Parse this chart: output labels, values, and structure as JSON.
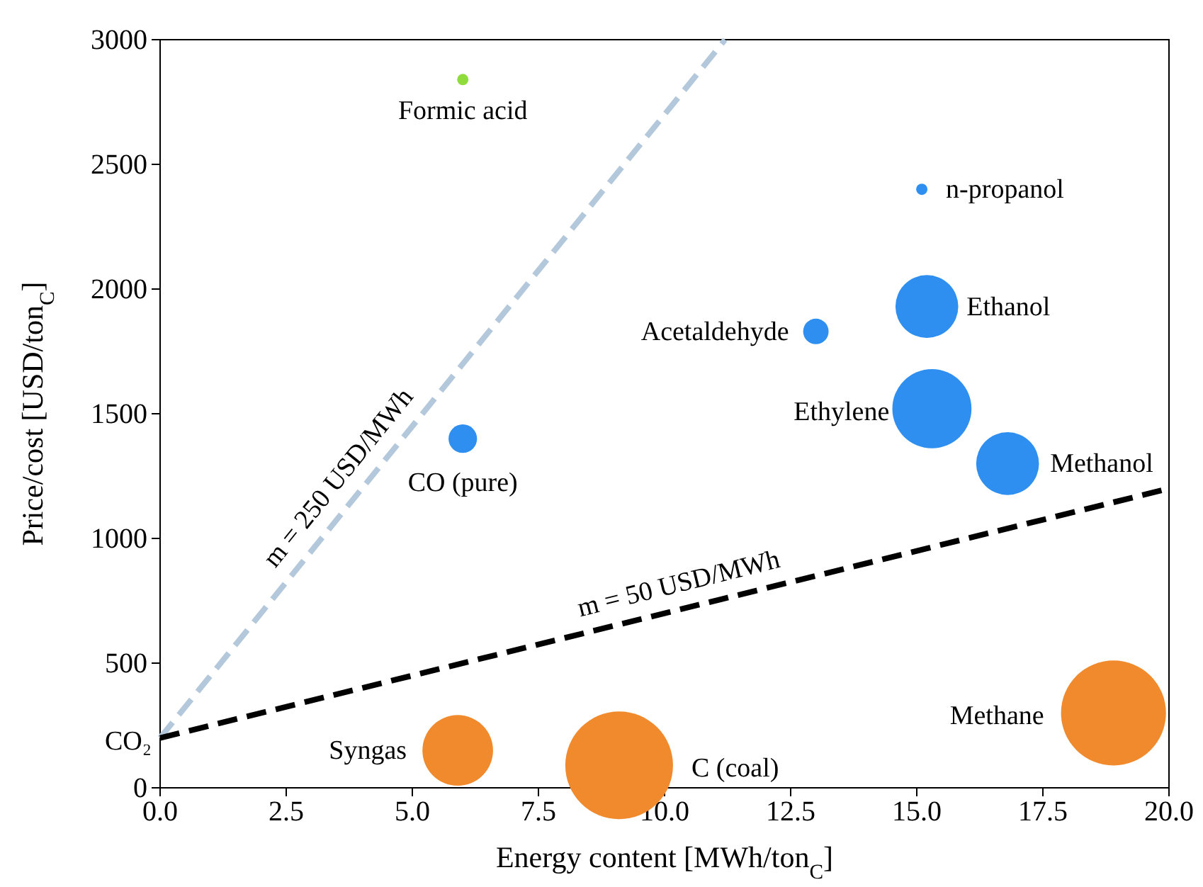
{
  "chart_data": {
    "type": "bubble",
    "xlabel": "Energy content [MWh/ton$_{C}$]",
    "ylabel": "Price/cost [USD/ton$_{C}$]",
    "xlim": [
      0,
      20
    ],
    "ylim": [
      0,
      3000
    ],
    "xticks": [
      {
        "value": 0,
        "label": "0.0"
      },
      {
        "value": 2.5,
        "label": "2.5"
      },
      {
        "value": 5,
        "label": "5.0"
      },
      {
        "value": 7.5,
        "label": "7.5"
      },
      {
        "value": 10,
        "label": "10.0"
      },
      {
        "value": 12.5,
        "label": "12.5"
      },
      {
        "value": 15,
        "label": "15.0"
      },
      {
        "value": 17.5,
        "label": "17.5"
      },
      {
        "value": 20,
        "label": "20.0"
      }
    ],
    "yticks": [
      0,
      500,
      1000,
      1500,
      2000,
      2500,
      3000
    ],
    "grid": false,
    "series": [
      {
        "type": "line",
        "name": "m = 250 USD/MWh",
        "color": "#b4c8dc",
        "line_style": "dashed",
        "x": [
          0,
          11.2
        ],
        "values": [
          200,
          3000
        ]
      },
      {
        "type": "line",
        "name": "m = 50 USD/MWh",
        "color": "#000000",
        "line_style": "dashed",
        "x": [
          0,
          20
        ],
        "values": [
          200,
          1200
        ]
      },
      {
        "color": "#8fdc3c",
        "x": [
          6
        ],
        "values": [
          2840
        ],
        "sizes": [
          0.011
        ]
      },
      {
        "color": "#2e8ff0",
        "x": [
          15.1,
          13,
          15.2,
          15.3,
          16.8,
          6
        ],
        "values": [
          2400,
          1830,
          1930,
          1520,
          1300,
          1400
        ],
        "sizes": [
          0.011,
          0.056,
          0.34,
          0.54,
          0.34,
          0.07
        ]
      },
      {
        "color": "#f08a2c",
        "x": [
          5.9,
          9.1,
          18.9
        ],
        "values": [
          150,
          90,
          300
        ],
        "sizes": [
          0.43,
          1,
          0.95
        ]
      }
    ],
    "annotations": [
      {
        "text": "Formic acid",
        "x": 6,
        "y": 2840
      },
      {
        "text": "n-propanol",
        "x": 15.1,
        "y": 2400
      },
      {
        "text": "Acetaldehyde",
        "x": 13,
        "y": 1830
      },
      {
        "text": "Ethanol",
        "x": 15.2,
        "y": 1930
      },
      {
        "text": "Ethylene",
        "x": 15.3,
        "y": 1520
      },
      {
        "text": "Methanol",
        "x": 16.8,
        "y": 1300
      },
      {
        "text": "CO (pure)",
        "x": 6,
        "y": 1400
      },
      {
        "text": "Syngas",
        "x": 5.9,
        "y": 150
      },
      {
        "text": "C (coal)",
        "x": 9.1,
        "y": 90
      },
      {
        "text": "Methane",
        "x": 18.9,
        "y": 300
      },
      {
        "text": "CO₂",
        "x": 0,
        "y": 200
      }
    ]
  }
}
